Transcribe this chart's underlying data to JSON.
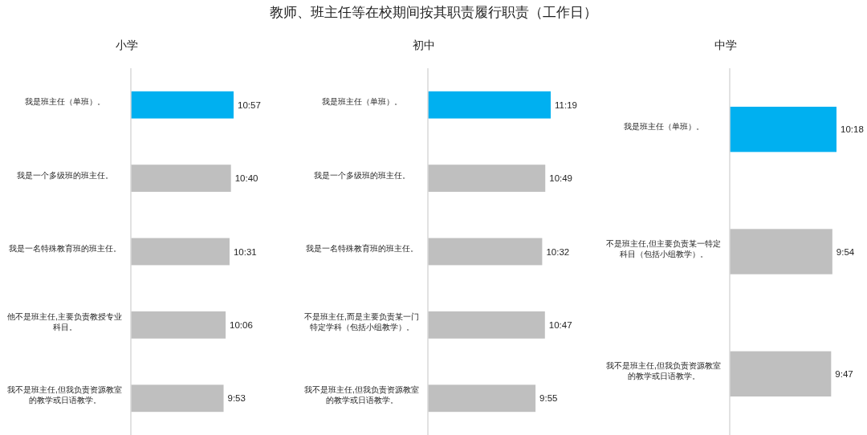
{
  "chart_data": [
    {
      "type": "bar",
      "orientation": "horizontal",
      "subtitle": "小学",
      "tick_labels": "y",
      "categories": [
        "我是班主任（单班）。",
        "我是一个多级班的班主任。",
        "我是一名特殊教育班的班主任。",
        "他不是班主任,主要负责教授专业科目。",
        "我不是班主任,但我负责资源教室的教学或日语教学。"
      ],
      "values": [
        10.95,
        10.667,
        10.517,
        10.1,
        9.883
      ],
      "value_labels": [
        "10:57",
        "10:40",
        "10:31",
        "10:06",
        "9:53"
      ],
      "colors": [
        "#00b0f0",
        "#bfbfbf",
        "#bfbfbf",
        "#bfbfbf",
        "#bfbfbf"
      ]
    },
    {
      "type": "bar",
      "orientation": "horizontal",
      "title": "教师、班主任等在校期间按其职责履行职责（工作日）",
      "subtitle": "初中",
      "tick_labels": "y",
      "categories": [
        "我是班主任（单班）。",
        "我是一个多级班的班主任。",
        "我是一名特殊教育班的班主任。",
        "不是班主任,而是主要负责某一门特定学科（包括小组教学）。",
        "我不是班主任,但我负责资源教室的教学或日语教学。"
      ],
      "values": [
        11.317,
        10.817,
        10.533,
        10.783,
        9.917
      ],
      "value_labels": [
        "11:19",
        "10:49",
        "10:32",
        "10:47",
        "9:55"
      ],
      "colors": [
        "#00b0f0",
        "#bfbfbf",
        "#bfbfbf",
        "#bfbfbf",
        "#bfbfbf"
      ]
    },
    {
      "type": "bar",
      "orientation": "horizontal",
      "subtitle": "中学",
      "tick_labels": "y",
      "categories": [
        "我是班主任（单班）。",
        "不是班主任,但主要负责某一特定科目（包括小组教学）。",
        "我不是班主任,但我负责资源教室的教学或日语教学。"
      ],
      "values": [
        10.3,
        9.9,
        9.783
      ],
      "value_labels": [
        "10:18",
        "9:54",
        "9:47"
      ],
      "colors": [
        "#00b0f0",
        "#bfbfbf",
        "#bfbfbf"
      ]
    }
  ]
}
